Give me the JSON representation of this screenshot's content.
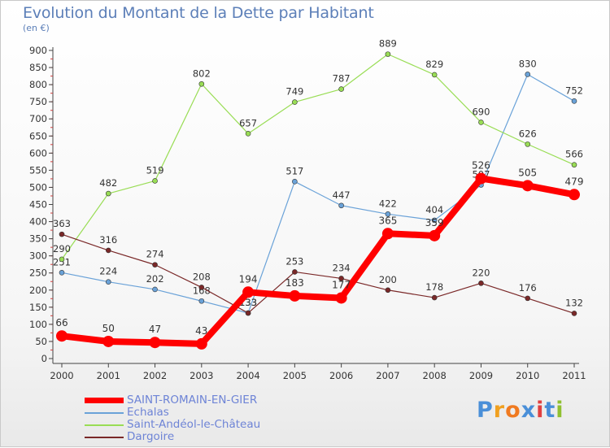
{
  "header": {
    "title": "Evolution du Montant de la Dette par Habitant",
    "unit": "(en €)"
  },
  "chart_data": {
    "type": "line",
    "title": "Evolution du Montant de la Dette par Habitant",
    "ylabel": "(en €)",
    "xlabel": "",
    "x": [
      "2000",
      "2001",
      "2002",
      "2003",
      "2004",
      "2005",
      "2006",
      "2007",
      "2008",
      "2009",
      "2010",
      "2011"
    ],
    "ylim": [
      0,
      900
    ],
    "yticks": [
      0,
      50,
      100,
      150,
      200,
      250,
      300,
      350,
      400,
      450,
      500,
      550,
      600,
      650,
      700,
      750,
      800,
      850,
      900
    ],
    "grid": false,
    "series": [
      {
        "name": "SAINT-ROMAIN-EN-GIER",
        "color": "#ff0000",
        "values": [
          66,
          50,
          47,
          43,
          194,
          183,
          177,
          365,
          359,
          526,
          505,
          479
        ]
      },
      {
        "name": "Echalas",
        "color": "#6aa2d8",
        "values": [
          251,
          224,
          202,
          168,
          133,
          517,
          447,
          422,
          404,
          507,
          830,
          752
        ]
      },
      {
        "name": "Saint-Andéol-le-Château",
        "color": "#99dd55",
        "values": [
          290,
          482,
          519,
          802,
          657,
          749,
          787,
          889,
          829,
          690,
          626,
          566
        ]
      },
      {
        "name": "Dargoire",
        "color": "#7a2828",
        "values": [
          363,
          316,
          274,
          208,
          133,
          253,
          234,
          200,
          178,
          220,
          176,
          132
        ]
      }
    ],
    "legend_position": "bottom-left"
  },
  "legend": {
    "items": [
      {
        "label": "SAINT-ROMAIN-EN-GIER",
        "color": "#ff0000"
      },
      {
        "label": "Echalas",
        "color": "#6aa2d8"
      },
      {
        "label": "Saint-Andéol-le-Château",
        "color": "#99dd55"
      },
      {
        "label": "Dargoire",
        "color": "#7a2828"
      }
    ]
  },
  "logo": {
    "text": "Proxiti",
    "letter_colors": [
      "#4a8fd8",
      "#f0a020",
      "#f07a20",
      "#4a8fd8",
      "#e04040",
      "#4a8fd8",
      "#90c030"
    ]
  }
}
